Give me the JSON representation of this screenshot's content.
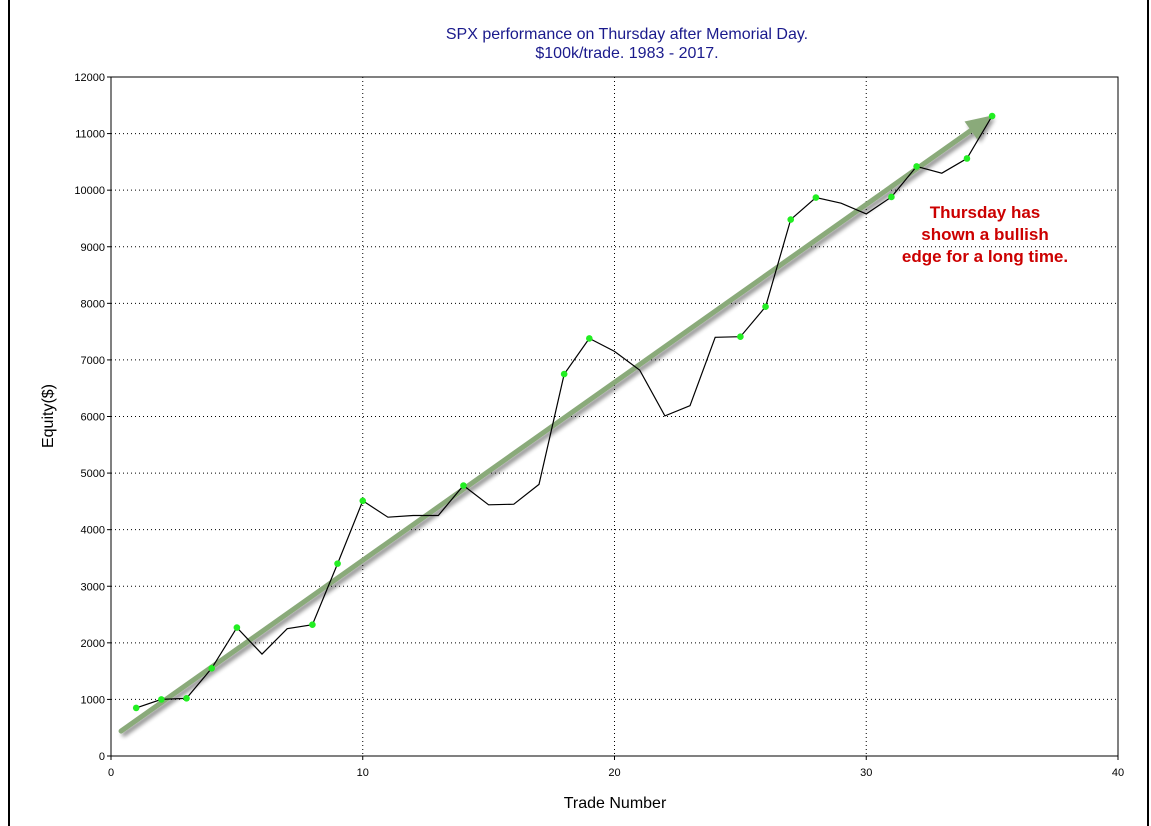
{
  "chart_data": {
    "type": "line",
    "title_lines": [
      "SPX performance on Thursday after Memorial Day.",
      "$100k/trade. 1983 - 2017."
    ],
    "xlabel": "Trade Number",
    "ylabel": "Equity($)",
    "xlim": [
      0,
      40
    ],
    "ylim": [
      0,
      12000
    ],
    "x_ticks": [
      0,
      10,
      20,
      30,
      40
    ],
    "y_ticks": [
      0,
      1000,
      2000,
      3000,
      4000,
      5000,
      6000,
      7000,
      8000,
      9000,
      10000,
      11000,
      12000
    ],
    "grid": true,
    "series": [
      {
        "line_color": "#000000",
        "marker_color": "#22ee22",
        "x": [
          1,
          2,
          3,
          4,
          5,
          6,
          7,
          8,
          9,
          10,
          11,
          12,
          13,
          14,
          15,
          16,
          17,
          18,
          19,
          20,
          21,
          22,
          23,
          24,
          25,
          26,
          27,
          28,
          29,
          30,
          31,
          32,
          33,
          34,
          35
        ],
        "values": [
          850,
          1000,
          1020,
          1550,
          2270,
          1800,
          2250,
          2320,
          3400,
          4510,
          4220,
          4250,
          4250,
          4780,
          4440,
          4450,
          4800,
          6750,
          7380,
          7150,
          6820,
          6010,
          6190,
          7400,
          7410,
          7940,
          9480,
          9870,
          9770,
          9580,
          9880,
          10420,
          10300,
          10560,
          11310
        ],
        "markers_at": [
          1,
          2,
          3,
          4,
          5,
          8,
          9,
          10,
          14,
          18,
          19,
          25,
          26,
          27,
          28,
          31,
          32,
          34,
          35
        ]
      }
    ],
    "trend_arrow": {
      "from": [
        0.4,
        440
      ],
      "to": [
        35,
        11320
      ],
      "color": "#8aaa7a"
    },
    "annotation": {
      "lines": [
        "Thursday has",
        "shown a bullish",
        "edge for a long time."
      ],
      "color": "#cc0000",
      "anchor": [
        36.5,
        9100
      ]
    }
  }
}
